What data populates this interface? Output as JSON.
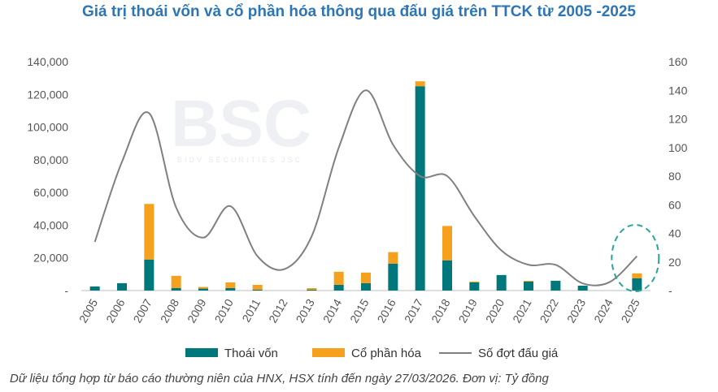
{
  "title": "Giá trị thoái vốn và cổ phần hóa thông qua đấu giá trên TTCK từ 2005 -2025",
  "note": "Dữ liệu tổng hợp từ báo cáo thường niên của HNX, HSX tính đến ngày 27/03/2026. Đơn vị: Tỷ đồng",
  "watermark": {
    "logo": "BSC",
    "sub": "BIDV SECURITIES JSC"
  },
  "colors": {
    "thoai_von": "#00777a",
    "co_phan_hoa": "#f5a11d",
    "so_dot": "#808080",
    "highlight": "#2aa59a"
  },
  "chart_data": {
    "type": "bar",
    "stacked": true,
    "categories": [
      "2005",
      "2006",
      "2007",
      "2008",
      "2009",
      "2010",
      "2011",
      "2012",
      "2013",
      "2014",
      "2015",
      "2016",
      "2017",
      "2018",
      "2019",
      "2020",
      "2021",
      "2022",
      "2023",
      "2024",
      "2025"
    ],
    "series": [
      {
        "name": "Thoái vốn",
        "axis": "left",
        "type": "bar",
        "values": [
          2500,
          4500,
          19000,
          1500,
          1200,
          1500,
          500,
          0,
          500,
          3500,
          4500,
          16500,
          125000,
          18500,
          5000,
          9500,
          5500,
          6000,
          3000,
          0,
          7500
        ]
      },
      {
        "name": "Cổ phần hóa",
        "axis": "left",
        "type": "bar",
        "values": [
          0,
          0,
          34000,
          7500,
          1000,
          3500,
          3000,
          0,
          1000,
          8000,
          6500,
          7000,
          3000,
          21000,
          500,
          0,
          500,
          0,
          0,
          0,
          3000
        ]
      },
      {
        "name": "Số đợt đấu giá",
        "axis": "right",
        "type": "line",
        "values": [
          34,
          90,
          124,
          58,
          37,
          59,
          24,
          15,
          38,
          100,
          140,
          102,
          80,
          80,
          52,
          28,
          18,
          18,
          5,
          6,
          24
        ]
      }
    ],
    "ylim_left": [
      0,
      140000
    ],
    "yticks_left": [
      "-",
      "20,000",
      "40,000",
      "60,000",
      "80,000",
      "100,000",
      "120,000",
      "140,000"
    ],
    "ylim_right": [
      0,
      160
    ],
    "yticks_right": [
      "-",
      "20",
      "40",
      "60",
      "80",
      "100",
      "120",
      "140",
      "160"
    ],
    "legend": "bottom",
    "grid": false
  }
}
